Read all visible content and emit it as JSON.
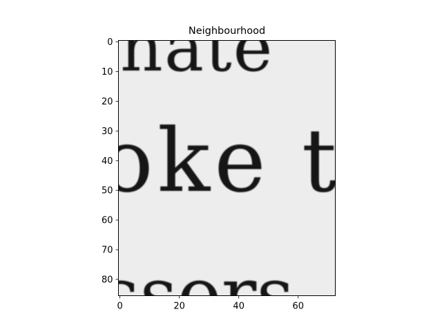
{
  "chart_data": {
    "type": "heatmap",
    "title": "Neighbourhood",
    "xlabel": "",
    "ylabel": "",
    "x_ticks": [
      0,
      20,
      40,
      60
    ],
    "y_ticks": [
      0,
      10,
      20,
      30,
      40,
      50,
      60,
      70,
      80
    ],
    "xlim": [
      -0.5,
      72.5
    ],
    "ylim": [
      85.5,
      -0.5
    ],
    "image_width": 73,
    "image_height": 86,
    "colormap": "gray",
    "grid": false,
    "content": "grayscale crop of scanned serif text",
    "text_fragments": [
      {
        "text": "nate",
        "row": 5
      },
      {
        "text": "oke t",
        "row": 35
      },
      {
        "text": "ssors",
        "row": 80
      }
    ]
  }
}
